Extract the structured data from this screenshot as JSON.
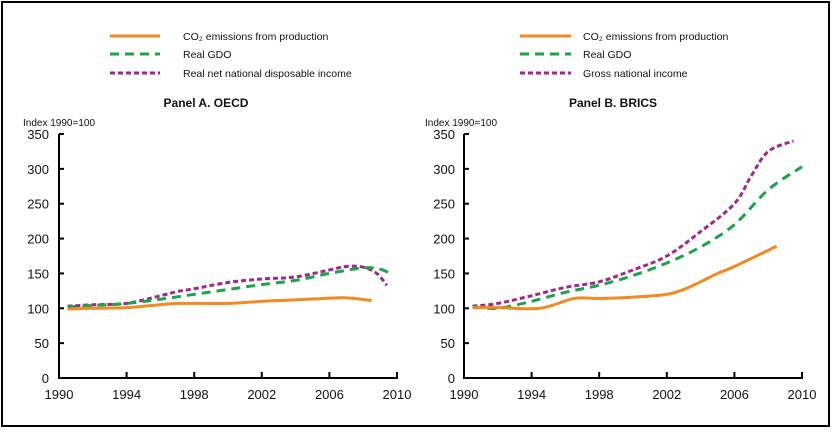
{
  "colors": {
    "co2": "#f08a24",
    "gdp": "#1fa14a",
    "income": "#9b2a8a"
  },
  "chart_data": [
    {
      "type": "line",
      "title": "Panel A. OECD",
      "ylabel": "Index 1990=100",
      "xlim": [
        1990,
        2010
      ],
      "ylim": [
        0,
        350
      ],
      "xticks": [
        "1990",
        "1994",
        "1998",
        "2002",
        "2006",
        "2010"
      ],
      "yticks": [
        "0",
        "50",
        "100",
        "150",
        "200",
        "250",
        "300",
        "350"
      ],
      "grid": false,
      "legend": "top",
      "series": [
        {
          "name": "CO₂ emissions from production",
          "key": "co2",
          "style": "solid",
          "x": [
            1990.5,
            1992,
            1994,
            1995.5,
            1997,
            2000,
            2002,
            2004,
            2006.5,
            2007.5,
            2008.5
          ],
          "y": [
            99,
            100,
            101,
            104,
            107,
            107,
            110,
            112,
            115,
            114,
            111
          ]
        },
        {
          "name": "Real GDO",
          "key": "gdp",
          "style": "dashed",
          "x": [
            1990.5,
            1992,
            1994,
            1996,
            1998,
            2000,
            2002,
            2004,
            2006,
            2008,
            2009,
            2009.6
          ],
          "y": [
            102,
            104,
            107,
            113,
            120,
            127,
            134,
            140,
            150,
            158,
            156,
            150
          ]
        },
        {
          "name": "Real net national disposable income",
          "key": "income",
          "style": "dotted",
          "x": [
            1990.5,
            1992,
            1994,
            1996,
            1997,
            1998,
            2000,
            2002,
            2004,
            2006,
            2007,
            2008,
            2008.8,
            2009.4
          ],
          "y": [
            103,
            105,
            107,
            118,
            124,
            128,
            137,
            142,
            145,
            155,
            160,
            159,
            150,
            133
          ]
        }
      ]
    },
    {
      "type": "line",
      "title": "Panel B. BRICS",
      "ylabel": "Index 1990=100",
      "xlim": [
        1990,
        2010
      ],
      "ylim": [
        0,
        350
      ],
      "xticks": [
        "1990",
        "1994",
        "1998",
        "2002",
        "2006",
        "2010"
      ],
      "yticks": [
        "0",
        "50",
        "100",
        "150",
        "200",
        "250",
        "300",
        "350"
      ],
      "grid": false,
      "legend": "top",
      "series": [
        {
          "name": "CO₂ emissions from production",
          "key": "co2",
          "style": "solid",
          "x": [
            1990.5,
            1992,
            1994.5,
            1996.5,
            1998,
            2000,
            2002,
            2003,
            2004,
            2005,
            2006,
            2008.5
          ],
          "y": [
            101,
            101,
            100,
            114,
            114,
            116,
            120,
            127,
            138,
            150,
            160,
            189
          ]
        },
        {
          "name": "Real GDO",
          "key": "gdp",
          "style": "dashed",
          "x": [
            1990.5,
            1992,
            1994,
            1996,
            1998,
            2000,
            2002,
            2004,
            2006,
            2008,
            2010
          ],
          "y": [
            102,
            100,
            110,
            123,
            133,
            147,
            165,
            188,
            220,
            270,
            303
          ]
        },
        {
          "name": "Gross national income",
          "key": "income",
          "style": "dotted",
          "x": [
            1990.5,
            1992,
            1994,
            1996,
            1998,
            2000,
            2002,
            2004,
            2006,
            2007,
            2008,
            2009.5
          ],
          "y": [
            103,
            107,
            118,
            130,
            138,
            155,
            175,
            210,
            250,
            290,
            325,
            340
          ]
        }
      ]
    }
  ]
}
